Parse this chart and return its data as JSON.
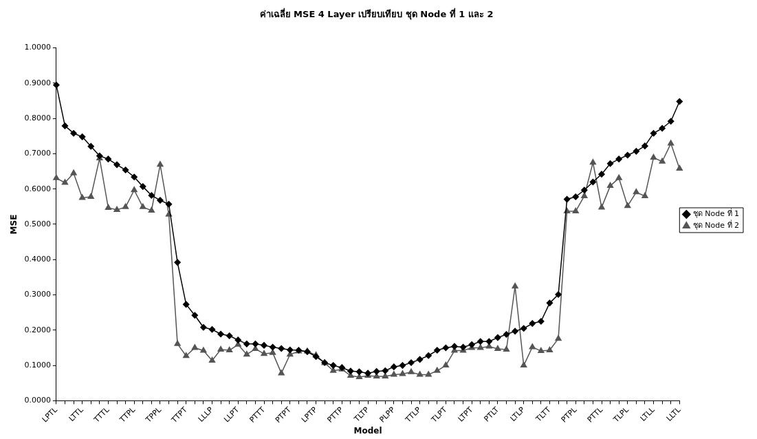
{
  "chart_data": {
    "type": "line",
    "title": "ค่าเฉลี่ย MSE 4 Layer เปรียบเทียบ ชุด Node ที่ 1 และ 2",
    "xlabel": "Model",
    "ylabel": "MSE",
    "categories": [
      "LPTL",
      null,
      null,
      "LTTL",
      null,
      null,
      "TTTL",
      null,
      null,
      "TTPL",
      null,
      null,
      "TPPL",
      null,
      null,
      "TTPT",
      null,
      null,
      "LLLP",
      null,
      null,
      "LLPT",
      null,
      null,
      "PTTT",
      null,
      null,
      "PTPT",
      null,
      null,
      "LPTP",
      null,
      null,
      "PTTP",
      null,
      null,
      "TLTP",
      null,
      null,
      "PLPP",
      null,
      null,
      "TTLP",
      null,
      null,
      "TLPT",
      null,
      null,
      "LTPT",
      null,
      null,
      "PTLT",
      null,
      null,
      "LTLP",
      null,
      null,
      "TLTT",
      null,
      null,
      "PTPL",
      null,
      null,
      "PTTL",
      null,
      null,
      "TLPL",
      null,
      null,
      "LTLL",
      null,
      null,
      "LLTL"
    ],
    "series": [
      {
        "name": "ชุด Node ที่ 1",
        "color": "#000000",
        "marker": "diamond",
        "values": [
          0.895,
          0.779,
          0.758,
          0.748,
          0.721,
          0.694,
          0.685,
          0.669,
          0.654,
          0.634,
          0.607,
          0.582,
          0.568,
          0.557,
          0.392,
          0.273,
          0.242,
          0.208,
          0.202,
          0.189,
          0.184,
          0.172,
          0.161,
          0.161,
          0.157,
          0.152,
          0.148,
          0.144,
          0.143,
          0.139,
          0.125,
          0.108,
          0.1,
          0.094,
          0.084,
          0.082,
          0.078,
          0.083,
          0.085,
          0.096,
          0.1,
          0.108,
          0.117,
          0.128,
          0.143,
          0.15,
          0.154,
          0.152,
          0.159,
          0.168,
          0.168,
          0.179,
          0.188,
          0.197,
          0.205,
          0.219,
          0.225,
          0.277,
          0.301,
          0.571,
          0.578,
          0.597,
          0.62,
          0.642,
          0.672,
          0.685,
          0.696,
          0.707,
          0.722,
          0.758,
          0.772,
          0.792,
          0.848
        ]
      },
      {
        "name": "ชุด Node ที่ 2",
        "color": "#555555",
        "marker": "triangle",
        "values": [
          0.631,
          0.618,
          0.645,
          0.575,
          0.578,
          0.687,
          0.547,
          0.541,
          0.549,
          0.597,
          0.549,
          0.539,
          0.669,
          0.528,
          0.161,
          0.127,
          0.15,
          0.142,
          0.114,
          0.145,
          0.143,
          0.159,
          0.131,
          0.147,
          0.133,
          0.136,
          0.078,
          0.131,
          0.14,
          0.14,
          0.129,
          0.107,
          0.085,
          0.089,
          0.071,
          0.067,
          0.071,
          0.069,
          0.069,
          0.074,
          0.076,
          0.081,
          0.074,
          0.074,
          0.085,
          0.1,
          0.142,
          0.142,
          0.15,
          0.15,
          0.154,
          0.147,
          0.145,
          0.324,
          0.1,
          0.152,
          0.141,
          0.143,
          0.176,
          0.537,
          0.537,
          0.58,
          0.675,
          0.548,
          0.609,
          0.631,
          0.552,
          0.591,
          0.58,
          0.689,
          0.678,
          0.729,
          0.658
        ]
      }
    ],
    "ylim": [
      0,
      1
    ],
    "yticks": [
      {
        "value": 0,
        "label": "0.0000"
      },
      {
        "value": 0.1,
        "label": "0.1000"
      },
      {
        "value": 0.2,
        "label": "0.2000"
      },
      {
        "value": 0.3,
        "label": "0.3000"
      },
      {
        "value": 0.4,
        "label": "0.4000"
      },
      {
        "value": 0.5,
        "label": "0.5000"
      },
      {
        "value": 0.6,
        "label": "0.6000"
      },
      {
        "value": 0.7,
        "label": "0.7000"
      },
      {
        "value": 0.8,
        "label": "0.8000"
      },
      {
        "value": 0.9,
        "label": "0.9000"
      },
      {
        "value": 1,
        "label": "1.0000"
      }
    ],
    "grid": false,
    "legend": "right",
    "line_style": "solid"
  }
}
